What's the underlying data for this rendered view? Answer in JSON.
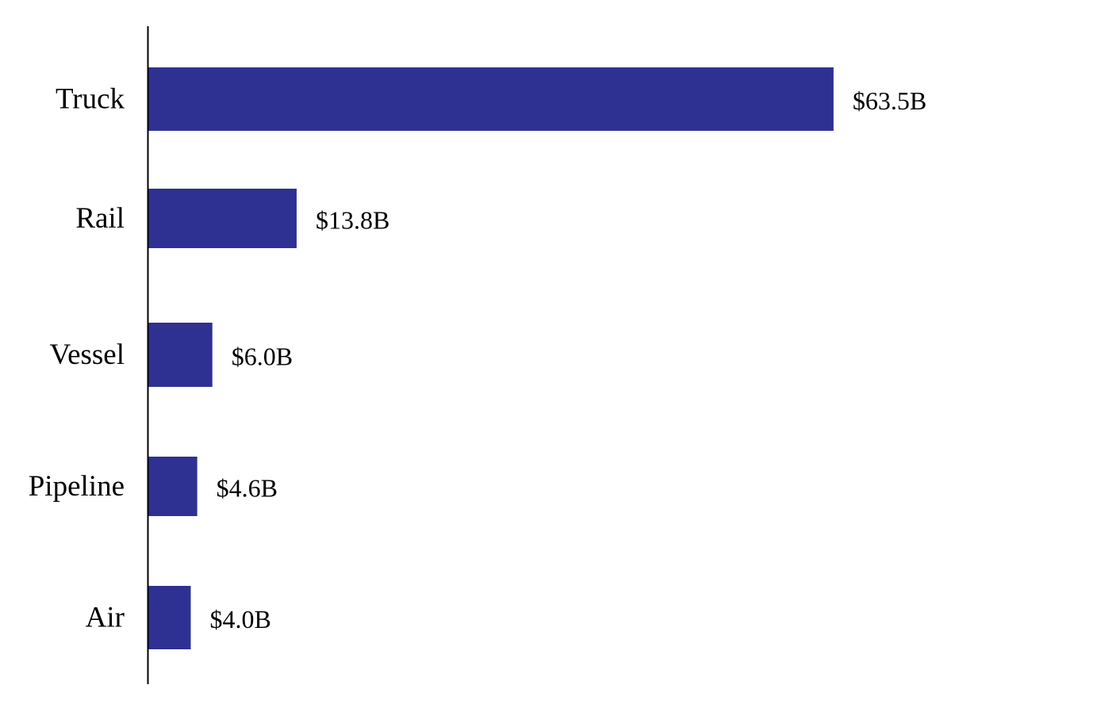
{
  "chart_data": {
    "type": "bar",
    "orientation": "horizontal",
    "title": "",
    "xlabel": "",
    "ylabel": "",
    "categories": [
      "Truck",
      "Rail",
      "Vessel",
      "Pipeline",
      "Air"
    ],
    "values": [
      63.5,
      13.8,
      6.0,
      4.6,
      4.0
    ],
    "value_labels": [
      "$63.5B",
      "$13.8B",
      "$6.0B",
      "$4.6B",
      "$4.0B"
    ],
    "unit": "$B",
    "xlim": [
      0,
      70
    ],
    "grid": false,
    "legend": "none",
    "bar_color": "#2e3192"
  }
}
